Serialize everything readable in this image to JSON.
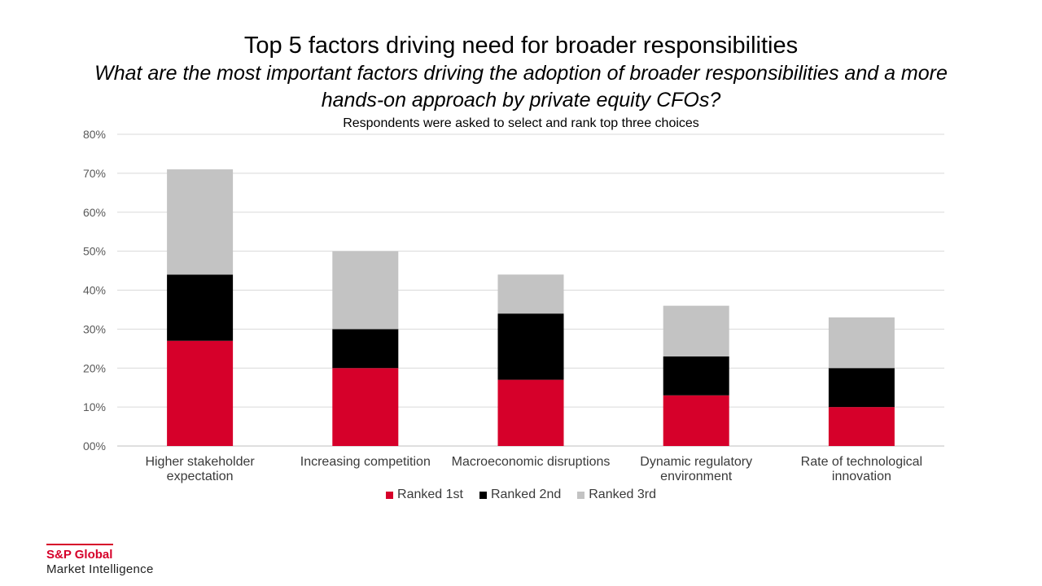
{
  "chart_data": {
    "type": "bar",
    "stacked": true,
    "title": "Top 5 factors driving need for broader responsibilities",
    "subtitle": "What are the most important factors driving the adoption of broader responsibilities and a more hands-on approach by private equity CFOs?",
    "note": "Respondents were asked to select and rank top three choices",
    "categories": [
      [
        "Higher stakeholder",
        "expectation"
      ],
      [
        "Increasing competition"
      ],
      [
        "Macroeconomic disruptions"
      ],
      [
        "Dynamic regulatory",
        "environment"
      ],
      [
        "Rate of technological",
        "innovation"
      ]
    ],
    "series": [
      {
        "name": "Ranked 1st",
        "color": "#d6002a",
        "values": [
          27,
          20,
          17,
          13,
          10
        ]
      },
      {
        "name": "Ranked 2nd",
        "color": "#000000",
        "values": [
          17,
          10,
          17,
          10,
          10
        ]
      },
      {
        "name": "Ranked 3rd",
        "color": "#c3c3c3",
        "values": [
          27,
          20,
          10,
          13,
          13
        ]
      }
    ],
    "ylim": [
      0,
      80
    ],
    "yticks": [
      0,
      10,
      20,
      30,
      40,
      50,
      60,
      70,
      80
    ],
    "ytick_labels": [
      "00%",
      "10%",
      "20%",
      "30%",
      "40%",
      "50%",
      "60%",
      "70%",
      "80%"
    ],
    "grid": true,
    "legend_position": "bottom"
  },
  "branding": {
    "line1": "S&P Global",
    "line2": "Market Intelligence"
  }
}
